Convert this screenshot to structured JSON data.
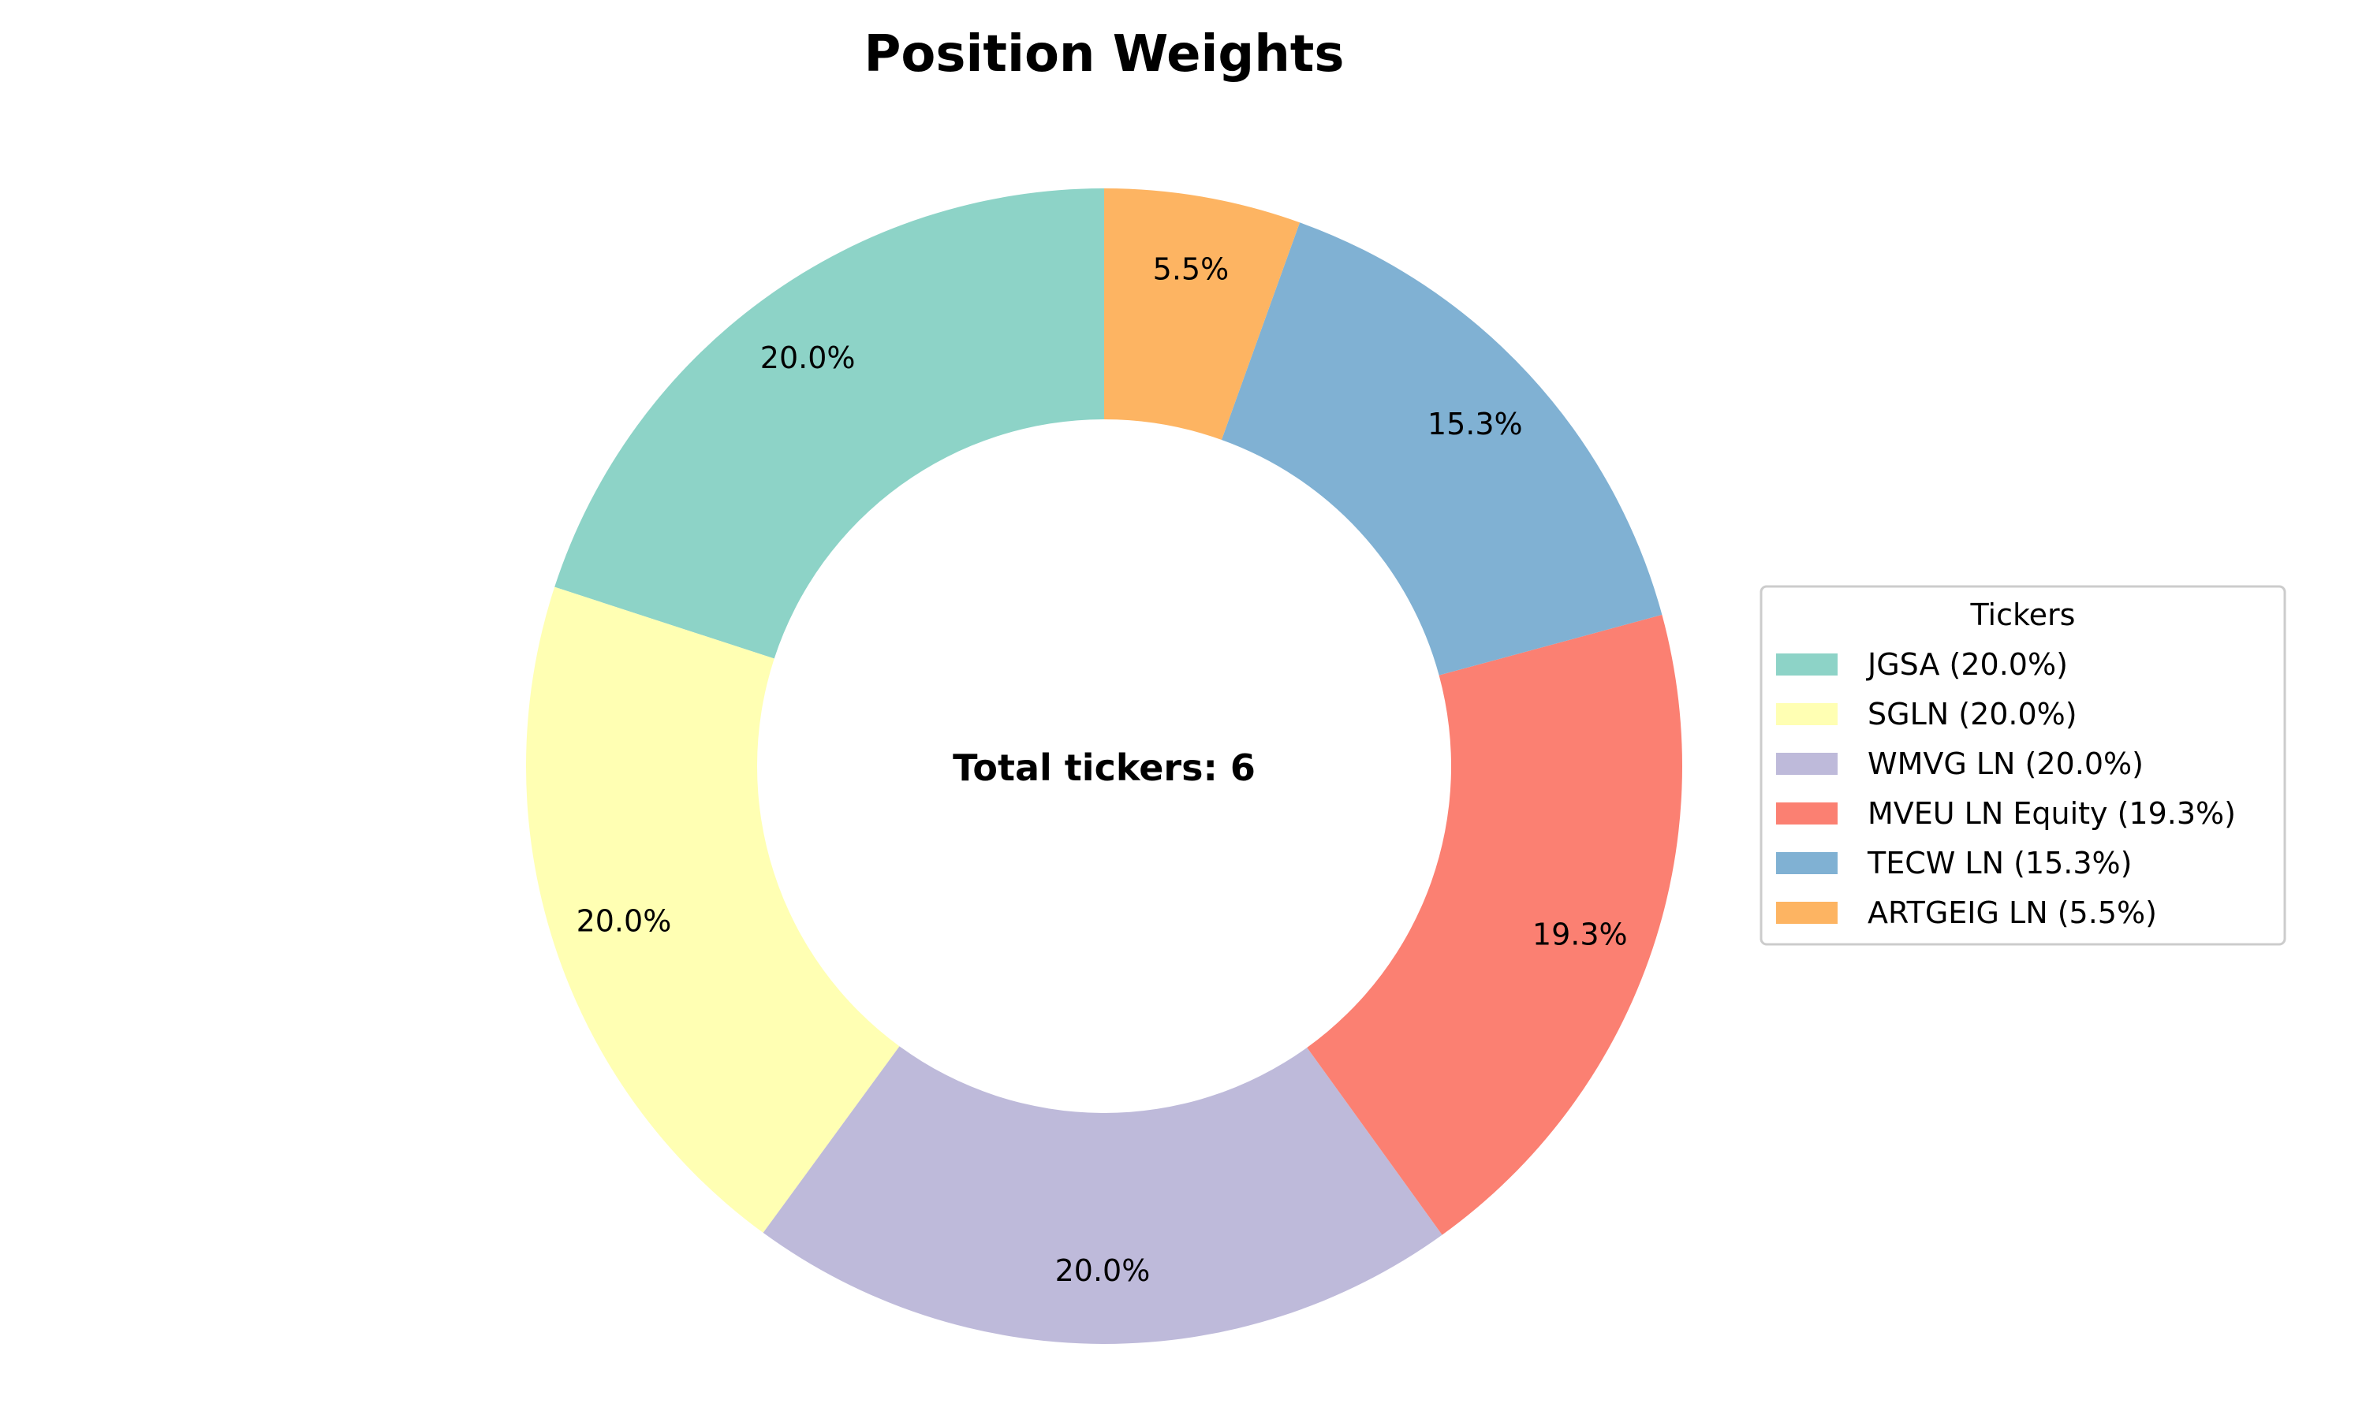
{
  "chart_data": {
    "type": "pie",
    "variant": "donut",
    "title": "Position Weights",
    "center_label": "Total tickers: 6",
    "start_angle_deg": 90,
    "direction": "counterclockwise",
    "slices": [
      {
        "label": "JGSA",
        "value": 20.0,
        "pct_label": "20.0%",
        "legend_label": "JGSA (20.0%)",
        "color": "#8dd3c7"
      },
      {
        "label": "SGLN",
        "value": 20.0,
        "pct_label": "20.0%",
        "legend_label": "SGLN (20.0%)",
        "color": "#ffffb3"
      },
      {
        "label": "WMVG LN",
        "value": 20.0,
        "pct_label": "20.0%",
        "legend_label": "WMVG LN (20.0%)",
        "color": "#bebada"
      },
      {
        "label": "MVEU LN Equity",
        "value": 19.3,
        "pct_label": "19.3%",
        "legend_label": "MVEU LN Equity (19.3%)",
        "color": "#fb8072"
      },
      {
        "label": "TECW LN",
        "value": 15.3,
        "pct_label": "15.3%",
        "legend_label": "TECW LN (15.3%)",
        "color": "#80b1d3"
      },
      {
        "label": "ARTGEIG LN",
        "value": 5.5,
        "pct_label": "5.5%",
        "legend_label": "ARTGEIG LN (5.5%)",
        "color": "#fdb462"
      }
    ],
    "legend": {
      "title": "Tickers",
      "placement": "right"
    }
  }
}
